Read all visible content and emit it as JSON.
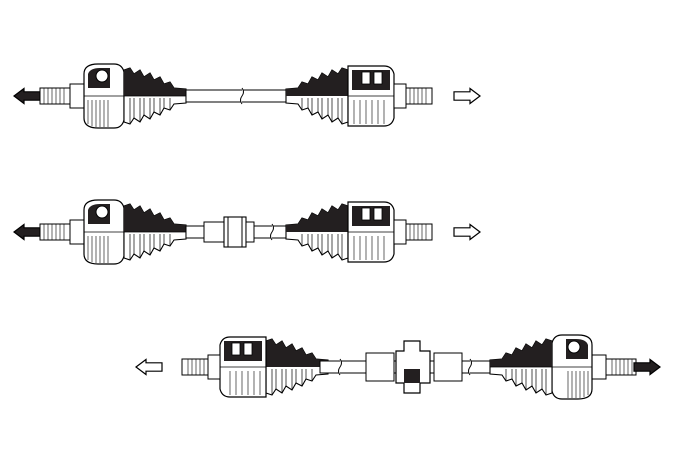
{
  "diagram": {
    "description_visible_text": "",
    "colors": {
      "line": "#000000",
      "fill_light": "#ffffff",
      "fill_dark": "#231f20",
      "arrow_filled": "#231f20",
      "arrow_hollow": "#ffffff"
    },
    "views": [
      {
        "id": "view-1",
        "left_arrow": "filled",
        "right_arrow": "hollow",
        "center_section": "plain-shaft"
      },
      {
        "id": "view-2",
        "left_arrow": "filled",
        "right_arrow": "hollow",
        "center_section": "shaft-with-damper"
      },
      {
        "id": "view-3",
        "left_arrow": "hollow",
        "right_arrow": "filled",
        "center_section": "shaft-with-center-bearing"
      }
    ],
    "icons": [
      "arrow-left-icon",
      "arrow-right-icon",
      "drive-shaft-icon",
      "cv-joint-boot-icon"
    ]
  }
}
